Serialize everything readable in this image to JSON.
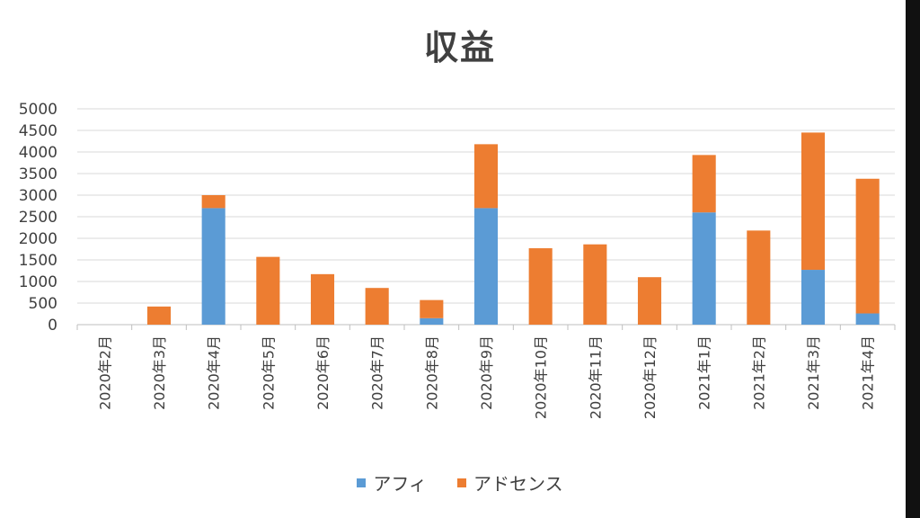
{
  "chart_data": {
    "type": "bar",
    "stacked": true,
    "title": "収益",
    "xlabel": "",
    "ylabel": "",
    "ylim": [
      0,
      5000
    ],
    "yticks": [
      0,
      500,
      1000,
      1500,
      2000,
      2500,
      3000,
      3500,
      4000,
      4500,
      5000
    ],
    "grid": true,
    "legend_position": "bottom",
    "categories": [
      "2020年2月",
      "2020年3月",
      "2020年4月",
      "2020年5月",
      "2020年6月",
      "2020年7月",
      "2020年8月",
      "2020年9月",
      "2020年10月",
      "2020年11月",
      "2020年12月",
      "2021年1月",
      "2021年2月",
      "2021年3月",
      "2021年4月"
    ],
    "series": [
      {
        "name": "アフィ",
        "color": "#5B9BD5",
        "values": [
          0,
          0,
          2700,
          0,
          0,
          0,
          150,
          2700,
          0,
          0,
          0,
          2600,
          0,
          1270,
          260
        ]
      },
      {
        "name": "アドセンス",
        "color": "#ED7D31",
        "values": [
          0,
          420,
          300,
          1570,
          1170,
          850,
          420,
          1480,
          1770,
          1860,
          1100,
          1330,
          2180,
          3180,
          3120
        ]
      }
    ]
  }
}
